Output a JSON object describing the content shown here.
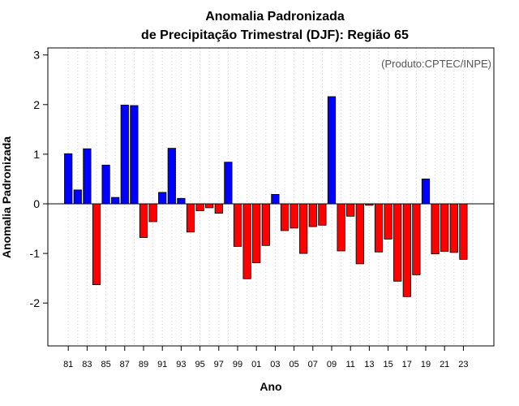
{
  "chart_data": {
    "type": "bar",
    "title": "Anomalia Padronizada",
    "subtitle": "de Precipitação Trimestral (DJF): Região 65",
    "xlabel": "Ano",
    "ylabel": "Anomalia Padronizada",
    "credit": "(Produto:CPTEC/INPE)",
    "ylim": [
      -2.9,
      3.2
    ],
    "yticks": [
      "-2",
      "-1",
      "0",
      "1",
      "2",
      "3"
    ],
    "ytick_values": [
      -2,
      -1,
      0,
      1,
      2,
      3
    ],
    "grid": "vertical dotted",
    "positive_color": "#0000ff",
    "negative_color": "#ff0000",
    "categories": [
      "81",
      "82",
      "83",
      "84",
      "85",
      "86",
      "87",
      "88",
      "89",
      "90",
      "91",
      "92",
      "93",
      "94",
      "95",
      "96",
      "97",
      "98",
      "99",
      "00",
      "01",
      "02",
      "03",
      "04",
      "05",
      "06",
      "07",
      "08",
      "09",
      "10",
      "11",
      "12",
      "13",
      "14",
      "15",
      "16",
      "17",
      "18",
      "19",
      "20",
      "21",
      "22",
      "23",
      "24"
    ],
    "xtick_labels": [
      "81",
      "83",
      "85",
      "87",
      "89",
      "91",
      "93",
      "95",
      "97",
      "99",
      "01",
      "03",
      "05",
      "07",
      "09",
      "11",
      "13",
      "15",
      "17",
      "19",
      "21",
      "23"
    ],
    "values": [
      1.01,
      0.28,
      1.11,
      -1.63,
      0.78,
      0.13,
      1.99,
      1.98,
      -0.68,
      -0.36,
      0.23,
      1.12,
      0.11,
      -0.57,
      -0.14,
      -0.08,
      -0.19,
      0.84,
      -0.86,
      -1.51,
      -1.19,
      -0.84,
      0.19,
      -0.54,
      -0.49,
      -1.0,
      -0.46,
      -0.43,
      2.16,
      -0.95,
      -0.25,
      -1.21,
      -0.03,
      -0.97,
      -0.71,
      -1.56,
      -1.87,
      -1.43,
      0.5,
      -1.01,
      -0.96,
      -0.98,
      -1.12,
      0.0
    ]
  }
}
